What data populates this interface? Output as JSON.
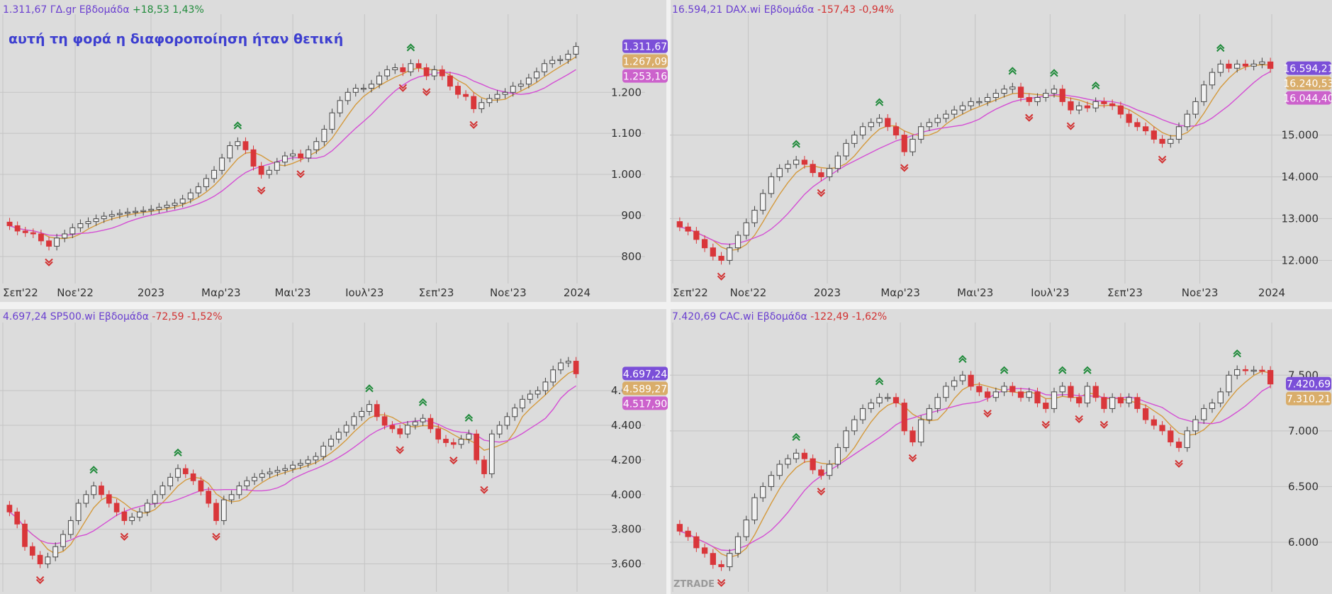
{
  "colors": {
    "background": "#dcdcdc",
    "grid": "#c4c4c4",
    "up_body": "#f2f2f2",
    "up_outline": "#444444",
    "down": "#d9363a",
    "ma_fast": "#d49a3e",
    "ma_slow": "#d44fd4",
    "signal_up": "#1f8a3a",
    "signal_down": "#d23232",
    "header_name": "#6a3fd0",
    "change_pos": "#1f8a3a",
    "change_neg": "#d23232",
    "axis_text": "#333333",
    "badge_last": "#7b4fd8",
    "badge_ma_fast": "#d9ad6a",
    "badge_ma_slow": "#cc62cc",
    "annotation": "#3d3fd0"
  },
  "watermark": "ZTRADE",
  "chart_data": [
    {
      "type": "candlestick",
      "header": {
        "last": "1.311,67",
        "name": "ΓΔ.gr Εβδομάδα",
        "change": "+18,53 1,43%"
      },
      "annotation": "αυτή τη φορά η διαφοροποίηση ήταν θετική",
      "x_labels": [
        "Σεπ'22",
        "Νοε'22",
        "2023",
        "Μαρ'23",
        "Μαι'23",
        "Ιουλ'23",
        "Σεπ'23",
        "Νοε'23",
        "2024"
      ],
      "y_ticks": [
        "800",
        "900",
        "1.000",
        "1.100",
        "1.200"
      ],
      "ylim": [
        760,
        1330
      ],
      "badges": {
        "last": "1.311,67",
        "ma_fast": "1.267,09",
        "ma_slow": "1.253,16"
      },
      "closes": [
        875,
        862,
        858,
        855,
        838,
        825,
        845,
        855,
        870,
        880,
        885,
        892,
        898,
        902,
        905,
        908,
        910,
        912,
        915,
        920,
        925,
        930,
        940,
        955,
        970,
        990,
        1010,
        1040,
        1070,
        1080,
        1060,
        1020,
        1000,
        1010,
        1030,
        1045,
        1050,
        1040,
        1060,
        1080,
        1110,
        1150,
        1180,
        1200,
        1210,
        1210,
        1220,
        1240,
        1255,
        1260,
        1250,
        1270,
        1260,
        1240,
        1255,
        1240,
        1215,
        1195,
        1190,
        1160,
        1175,
        1185,
        1195,
        1200,
        1215,
        1220,
        1235,
        1250,
        1270,
        1278,
        1280,
        1293,
        1311.67
      ]
    },
    {
      "type": "candlestick",
      "header": {
        "last": "16.594,21",
        "name": "DAX.wi Εβδομάδα",
        "change": "-157,43 -0,94%"
      },
      "x_labels": [
        "Σεπ'22",
        "Νοε'22",
        "2023",
        "Μαρ'23",
        "Μαι'23",
        "Ιουλ'23",
        "Σεπ'23",
        "Νοε'23",
        "2024"
      ],
      "y_ticks": [
        "12.000",
        "13.000",
        "14.000",
        "15.000"
      ],
      "ylim": [
        11700,
        17300
      ],
      "badges": {
        "last": "16.594,21",
        "ma_fast": "16.240,53",
        "ma_slow": "16.044,40"
      },
      "closes": [
        12800,
        12700,
        12500,
        12300,
        12100,
        12000,
        12300,
        12600,
        12900,
        13200,
        13600,
        14000,
        14200,
        14300,
        14400,
        14300,
        14100,
        14000,
        14200,
        14500,
        14800,
        15000,
        15200,
        15300,
        15400,
        15200,
        15000,
        14600,
        14900,
        15200,
        15300,
        15400,
        15500,
        15600,
        15700,
        15800,
        15800,
        15900,
        16000,
        16100,
        16150,
        15900,
        15800,
        15900,
        16000,
        16100,
        15800,
        15600,
        15700,
        15650,
        15800,
        15750,
        15700,
        15500,
        15300,
        15200,
        15100,
        14900,
        14800,
        14900,
        15200,
        15500,
        15800,
        16200,
        16500,
        16700,
        16600,
        16700,
        16650,
        16700,
        16751,
        16594.21
      ]
    },
    {
      "type": "candlestick",
      "header": {
        "last": "4.697,24",
        "name": "SP500.wi Εβδομάδα",
        "change": "-72,59 -1,52%"
      },
      "x_labels": [],
      "y_ticks": [
        "3.600",
        "3.800",
        "4.000",
        "4.200",
        "4.400",
        "4.600"
      ],
      "ylim": [
        3500,
        4850
      ],
      "badges": {
        "last": "4.697,24",
        "ma_fast": "4.589,27",
        "ma_slow": "4.517,90"
      },
      "closes": [
        3900,
        3830,
        3700,
        3650,
        3600,
        3640,
        3700,
        3770,
        3850,
        3950,
        4000,
        4050,
        4000,
        3950,
        3900,
        3850,
        3870,
        3900,
        3950,
        4000,
        4050,
        4100,
        4150,
        4120,
        4080,
        4020,
        3950,
        3850,
        3970,
        4000,
        4050,
        4080,
        4100,
        4120,
        4130,
        4140,
        4150,
        4170,
        4180,
        4200,
        4220,
        4280,
        4320,
        4360,
        4400,
        4450,
        4480,
        4520,
        4450,
        4400,
        4380,
        4350,
        4400,
        4420,
        4440,
        4380,
        4320,
        4300,
        4290,
        4320,
        4350,
        4200,
        4120,
        4350,
        4400,
        4450,
        4500,
        4550,
        4580,
        4600,
        4650,
        4720,
        4760,
        4770,
        4697.24
      ]
    },
    {
      "type": "candlestick",
      "header": {
        "last": "7.420,69",
        "name": "CAC.wi Εβδομάδα",
        "change": "-122,49 -1,62%"
      },
      "x_labels": [],
      "y_ticks": [
        "6.000",
        "6.500",
        "7.000",
        "7.500"
      ],
      "ylim": [
        5650,
        7750
      ],
      "badges": {
        "last": "7.420,69",
        "ma_fast": "7.310,21"
      },
      "closes": [
        6100,
        6050,
        5950,
        5900,
        5800,
        5780,
        5900,
        6050,
        6200,
        6400,
        6500,
        6600,
        6700,
        6750,
        6800,
        6750,
        6650,
        6600,
        6700,
        6850,
        7000,
        7100,
        7200,
        7250,
        7300,
        7300,
        7250,
        7000,
        6900,
        7100,
        7200,
        7300,
        7400,
        7450,
        7500,
        7400,
        7350,
        7300,
        7350,
        7400,
        7350,
        7300,
        7350,
        7250,
        7200,
        7350,
        7400,
        7300,
        7250,
        7400,
        7300,
        7200,
        7300,
        7250,
        7300,
        7200,
        7100,
        7050,
        7000,
        6900,
        6850,
        7000,
        7100,
        7200,
        7250,
        7350,
        7500,
        7550,
        7540,
        7545,
        7543,
        7420.69
      ]
    }
  ]
}
